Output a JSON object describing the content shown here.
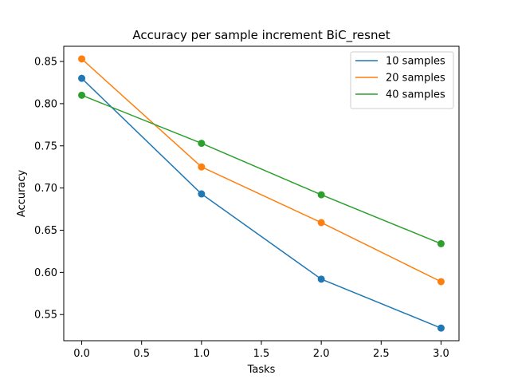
{
  "chart_data": {
    "type": "line",
    "title": "Accuracy per sample increment BiC_resnet",
    "xlabel": "Tasks",
    "ylabel": "Accuracy",
    "x": [
      0,
      1,
      2,
      3
    ],
    "xlim": [
      -0.15,
      3.15
    ],
    "ylim": [
      0.519,
      0.868
    ],
    "xticks": [
      0.0,
      0.5,
      1.0,
      1.5,
      2.0,
      2.5,
      3.0
    ],
    "xtick_labels": [
      "0.0",
      "0.5",
      "1.0",
      "1.5",
      "2.0",
      "2.5",
      "3.0"
    ],
    "yticks": [
      0.55,
      0.6,
      0.65,
      0.7,
      0.75,
      0.8,
      0.85
    ],
    "ytick_labels": [
      "0.55",
      "0.60",
      "0.65",
      "0.70",
      "0.75",
      "0.80",
      "0.85"
    ],
    "grid": false,
    "legend_position": "top-right",
    "markers": "circle",
    "series": [
      {
        "name": "10 samples",
        "color": "#1f77b4",
        "values": [
          0.83,
          0.693,
          0.592,
          0.534
        ]
      },
      {
        "name": "20 samples",
        "color": "#ff7f0e",
        "values": [
          0.853,
          0.725,
          0.659,
          0.589
        ]
      },
      {
        "name": "40 samples",
        "color": "#2ca02c",
        "values": [
          0.81,
          0.753,
          0.692,
          0.634
        ]
      }
    ]
  }
}
